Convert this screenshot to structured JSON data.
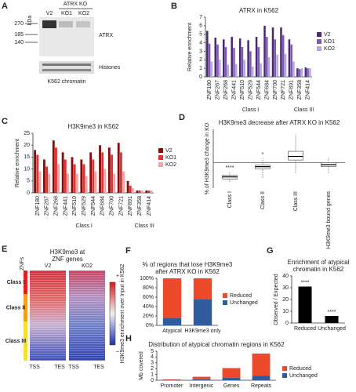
{
  "blot": {
    "panel": "A",
    "kda_label": "kDa",
    "markers": [
      270,
      185,
      140
    ],
    "header": "ATRX KO",
    "lanes": [
      "V2",
      "KO1",
      "KO2"
    ],
    "bands": [
      "ATRX",
      "Histones"
    ],
    "caption": "K562 chromatin"
  },
  "heatmap": {
    "panel": "E",
    "title": [
      "H3K9me3 at",
      "ZNF genes"
    ],
    "row_label": "ZNFs",
    "columns": [
      "V2",
      "KO2"
    ],
    "classes": [
      {
        "label": "Class I",
        "color": "#e02020"
      },
      {
        "label": "Class II",
        "color": "#f0a020"
      },
      {
        "label": "Class III",
        "color": "#f3e030"
      }
    ],
    "x_labels": [
      "TSS",
      "TES",
      "TSS",
      "TES"
    ],
    "scale": [
      "+",
      "–"
    ],
    "scale_label": "H3K9me3 enrichment over Input in K562"
  },
  "chart_data": [
    {
      "type": "bar",
      "panel": "B",
      "title": [
        "ATRX in K562"
      ],
      "ylabel": "Relative enrichment",
      "categories": [
        "ZNF180",
        "ZNF267",
        "ZNF268",
        "ZNF441",
        "ZNF510",
        "ZNF529",
        "ZNF544",
        "ZNF684",
        "ZNF700",
        "ZNF721",
        "ZNF891",
        "ZNF358",
        "ZNF414"
      ],
      "groups": [
        "Class I",
        "Class I",
        "Class I",
        "Class I",
        "Class I",
        "Class I",
        "Class I",
        "Class I",
        "Class I",
        "Class I",
        "Class I",
        "Class III",
        "Class III"
      ],
      "group_colors": {
        "Class I": "#d01010",
        "Class III": "#d08a10"
      },
      "series": [
        {
          "name": "V2",
          "color": "#4a2578",
          "values": [
            5.4,
            4.6,
            4.4,
            4.7,
            4.5,
            4.3,
            4.7,
            6.0,
            5.8,
            5.8,
            4.4,
            1.0,
            1.1
          ]
        },
        {
          "name": "KO1",
          "color": "#7c5bb3",
          "values": [
            3.9,
            3.8,
            3.5,
            3.4,
            3.5,
            3.0,
            3.5,
            4.7,
            4.4,
            4.9,
            3.8,
            0.9,
            1.0
          ]
        },
        {
          "name": "KO2",
          "color": "#b7a7e0",
          "values": [
            1.8,
            2.0,
            1.4,
            1.5,
            2.0,
            1.2,
            1.6,
            2.3,
            2.6,
            2.7,
            1.8,
            1.0,
            1.0
          ]
        }
      ],
      "ylim": [
        0,
        7
      ],
      "yticks": [
        0,
        1,
        2,
        3,
        4,
        5,
        6,
        7
      ],
      "legend": "right"
    },
    {
      "type": "bar",
      "panel": "C",
      "title": [
        "H3K9me3 in K562"
      ],
      "ylabel": "Relative enrichment",
      "categories": [
        "ZNF180",
        "ZNF267",
        "ZNF268",
        "ZNF441",
        "ZNF510",
        "ZNF529",
        "ZNF544",
        "ZNF684",
        "ZNF700",
        "ZNF721",
        "ZNF891",
        "ZNF358",
        "ZNF414"
      ],
      "groups": [
        "Class I",
        "Class I",
        "Class I",
        "Class I",
        "Class I",
        "Class I",
        "Class I",
        "Class I",
        "Class I",
        "Class I",
        "Class I",
        "Class III",
        "Class III"
      ],
      "group_colors": {
        "Class I": "#d01010",
        "Class III": "#d08a10"
      },
      "series": [
        {
          "name": "V2",
          "color": "#8b0a0a",
          "values": [
            18,
            14,
            22,
            17,
            15,
            14,
            17,
            20,
            19,
            21,
            5,
            1,
            1
          ]
        },
        {
          "name": "KO1",
          "color": "#e03030",
          "values": [
            16,
            11,
            19,
            14,
            12,
            12,
            14,
            17,
            16,
            17,
            3,
            1,
            1
          ]
        },
        {
          "name": "KO2",
          "color": "#f4a3a3",
          "values": [
            9,
            8,
            12,
            8,
            8,
            7,
            9,
            10,
            8,
            9,
            2,
            1,
            1
          ]
        }
      ],
      "ylim": [
        0,
        25
      ],
      "yticks": [
        0,
        5,
        10,
        15,
        20,
        25
      ],
      "legend": "right"
    },
    {
      "type": "box",
      "panel": "D",
      "title": [
        "H3K9me3 decrease after ATRX KO in K562"
      ],
      "ylabel": "% of H3K9me3 change in  KO",
      "categories": [
        "Class I",
        "Class II",
        "Class III",
        "H3K9me3 bound genes"
      ],
      "boxes": [
        {
          "min": -38,
          "q1": -32,
          "median": -28,
          "q3": -25,
          "max": -18
        },
        {
          "min": -30,
          "q1": -12,
          "median": -8,
          "q3": -5,
          "max": 8
        },
        {
          "min": -20,
          "q1": 5,
          "median": 12,
          "q3": 22,
          "max": 55
        },
        {
          "min": -20,
          "q1": -8,
          "median": -4,
          "q3": 0,
          "max": 10
        }
      ],
      "annotations": [
        "****",
        "*",
        null,
        null
      ],
      "hline": 0,
      "hline_color": "#e05040",
      "ylim": [
        -50,
        65
      ]
    },
    {
      "type": "stacked_bar",
      "panel": "F",
      "title": [
        "% of regions that lose H3K9me3",
        "after ATRX KO in K562"
      ],
      "categories": [
        "Atypical",
        "H3K9me3 only"
      ],
      "series": [
        {
          "name": "Unchanged",
          "color": "#2e5c9c",
          "values": [
            15,
            55
          ]
        },
        {
          "name": "Reduced",
          "color": "#ec4a2a",
          "values": [
            85,
            45
          ]
        }
      ],
      "ylim": [
        0,
        100
      ],
      "yticks": [
        {
          "value": 0,
          "label": "0%"
        },
        {
          "value": 20,
          "label": "20%"
        },
        {
          "value": 40,
          "label": "40%"
        },
        {
          "value": 60,
          "label": "60%"
        },
        {
          "value": 80,
          "label": "80%"
        },
        {
          "value": 100,
          "label": "100%"
        }
      ],
      "legend": "right"
    },
    {
      "type": "bar",
      "panel": "G",
      "title": [
        "Enrichment of atypical",
        "chromatin in K562"
      ],
      "ylabel": "Observed / Expected",
      "categories": [
        "Reduced",
        "Unchanged"
      ],
      "series": [
        {
          "name": null,
          "color": "#000000",
          "values": [
            31,
            6
          ]
        }
      ],
      "annotations": [
        "****",
        "****"
      ],
      "ylim": [
        0,
        40
      ],
      "yticks": [
        0,
        10,
        20,
        30,
        40
      ]
    },
    {
      "type": "stacked_bar",
      "panel": "H",
      "title": [
        "Distribution of atypical chromatin regions in K562"
      ],
      "ylabel": "Mb covered",
      "categories": [
        "Promoter",
        "Intergenic",
        "Genes",
        "Repeats"
      ],
      "series": [
        {
          "name": "Unchanged",
          "color": "#2e5c9c",
          "values": [
            0.05,
            0.15,
            0.4,
            0.8
          ]
        },
        {
          "name": "Reduced",
          "color": "#ec4a2a",
          "values": [
            0.1,
            0.45,
            1.7,
            3.8
          ]
        }
      ],
      "ylim": [
        0,
        5
      ],
      "yticks": [
        0,
        1,
        2,
        3,
        4,
        5
      ],
      "legend": "right"
    }
  ]
}
